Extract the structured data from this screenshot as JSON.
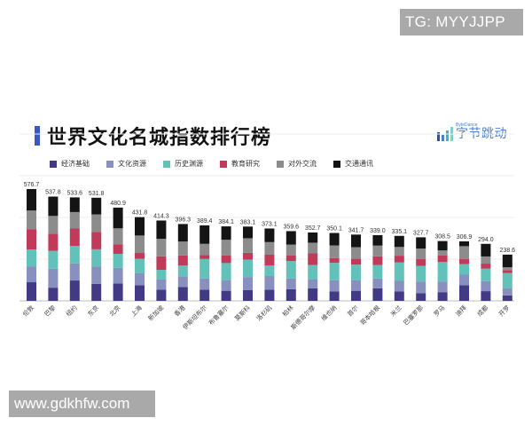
{
  "watermarks": {
    "top_right": "TG: MYYJJPP",
    "bottom_left": "www.gdkhfw.com"
  },
  "header": {
    "title": "世界文化名城指数排行榜",
    "logo_small": "ByteDance",
    "logo_text": "字节跳动",
    "accent_color": "#3a58c4"
  },
  "legend": [
    {
      "label": "经济基础",
      "color": "#433a86"
    },
    {
      "label": "文化资源",
      "color": "#8890bf"
    },
    {
      "label": "历史渊源",
      "color": "#62c1b8"
    },
    {
      "label": "教育研究",
      "color": "#c23a5a"
    },
    {
      "label": "对外交流",
      "color": "#8c8c8c"
    },
    {
      "label": "交通通讯",
      "color": "#141414"
    }
  ],
  "chart_data": {
    "type": "bar",
    "stacked": true,
    "title": "世界文化名城指数排行榜",
    "xlabel": "",
    "ylabel": "",
    "ylim": [
      0,
      600
    ],
    "grid": true,
    "legend_position": "top",
    "categories": [
      "伦敦",
      "巴黎",
      "纽约",
      "东京",
      "北京",
      "上海",
      "新加坡",
      "香港",
      "伊斯坦布尔",
      "布鲁塞尔",
      "莫斯科",
      "洛杉矶",
      "柏林",
      "斯德哥尔摩",
      "维也纳",
      "首尔",
      "哥本哈根",
      "米兰",
      "巴塞罗那",
      "罗马",
      "迪拜",
      "成都",
      "开罗"
    ],
    "totals": [
      576.7,
      537.8,
      533.6,
      531.8,
      480.9,
      431.8,
      414.3,
      396.3,
      389.4,
      384.1,
      383.1,
      373.1,
      359.6,
      352.7,
      350.1,
      341.7,
      339.0,
      335.1,
      327.7,
      308.5,
      306.9,
      294.0,
      238.6
    ],
    "series": [
      {
        "name": "经济基础",
        "values": [
          96,
          68,
          105,
          88,
          90,
          80,
          58,
          72,
          58,
          52,
          55,
          58,
          60,
          65,
          48,
          52,
          65,
          48,
          40,
          45,
          80,
          50,
          28
        ]
      },
      {
        "name": "文化资源",
        "values": [
          82,
          98,
          88,
          88,
          80,
          62,
          52,
          55,
          58,
          55,
          68,
          70,
          55,
          45,
          58,
          55,
          50,
          55,
          60,
          55,
          55,
          52,
          38
        ]
      },
      {
        "name": "历史渊源",
        "values": [
          87,
          92,
          90,
          90,
          72,
          75,
          50,
          55,
          100,
          88,
          90,
          55,
          90,
          75,
          90,
          80,
          70,
          95,
          80,
          100,
          55,
          65,
          78
        ]
      },
      {
        "name": "教育研究",
        "values": [
          105,
          88,
          90,
          90,
          50,
          30,
          70,
          52,
          20,
          40,
          35,
          55,
          30,
          60,
          25,
          30,
          45,
          35,
          35,
          35,
          25,
          25,
          15
        ]
      },
      {
        "name": "对外交流",
        "values": [
          96,
          92,
          85,
          90,
          82,
          90,
          90,
          72,
          58,
          80,
          75,
          65,
          55,
          55,
          65,
          60,
          55,
          45,
          55,
          25,
          67,
          37,
          14
        ]
      },
      {
        "name": "交通通讯",
        "values": [
          110.7,
          99.8,
          75.6,
          85.8,
          106.9,
          94.8,
          94.3,
          90.3,
          95.4,
          69.1,
          60.1,
          70.1,
          69.6,
          52.7,
          64.1,
          64.7,
          54.0,
          57.1,
          57.7,
          48.5,
          24.9,
          65.0,
          65.6
        ]
      }
    ]
  }
}
